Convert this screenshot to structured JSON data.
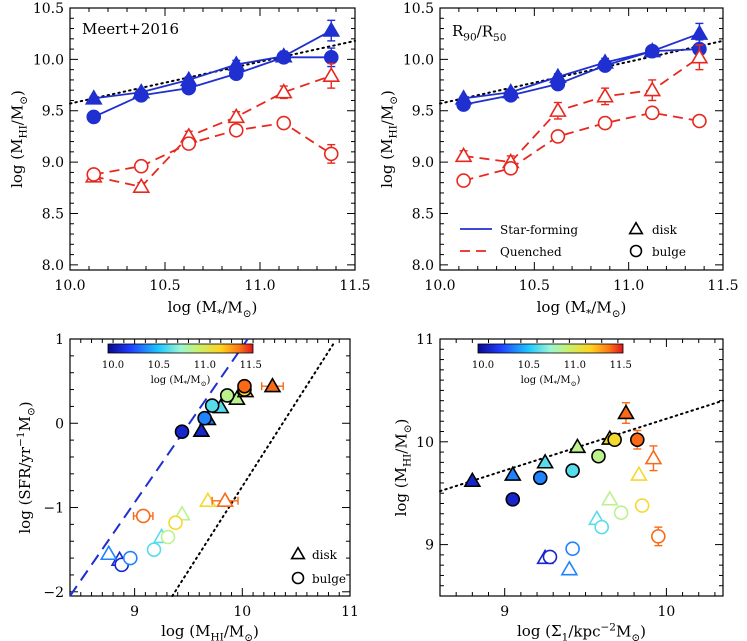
{
  "chart_data": [
    {
      "type": "line",
      "panel_label": "Meert+2016",
      "xlabel_main": "log (M",
      "xlabel_sub": "*",
      "xlabel_mid": "/M",
      "xlabel_sun": "⊙",
      "xlabel_end": ")",
      "ylabel_main": "log (M",
      "ylabel_sub": "HI",
      "ylabel_mid": "/M",
      "ylabel_sun": "⊙",
      "ylabel_end": ")",
      "xlim": [
        10.0,
        11.5
      ],
      "ylim": [
        7.95,
        10.5
      ],
      "xticks": [
        "10.0",
        "10.5",
        "11.0",
        "11.5"
      ],
      "yticks": [
        "8.0",
        "8.5",
        "9.0",
        "9.5",
        "10.0",
        "10.5"
      ],
      "x": [
        10.125,
        10.375,
        10.625,
        10.875,
        11.125,
        11.375
      ],
      "series": [
        {
          "group": "Star-forming",
          "shape": "disk",
          "color": "#1f2fd0",
          "dash": "solid",
          "filled": true,
          "values": [
            9.62,
            9.68,
            9.8,
            9.95,
            10.03,
            10.28
          ],
          "err": [
            0.02,
            0.03,
            0.03,
            0.04,
            0.05,
            0.1
          ]
        },
        {
          "group": "Star-forming",
          "shape": "bulge",
          "color": "#1f2fd0",
          "dash": "solid",
          "filled": true,
          "values": [
            9.44,
            9.65,
            9.72,
            9.86,
            10.02,
            10.02
          ],
          "err": [
            0.02,
            0.02,
            0.03,
            0.04,
            0.05,
            0.09
          ]
        },
        {
          "group": "Quenched",
          "shape": "disk",
          "color": "#e8281e",
          "dash": "dashed",
          "filled": false,
          "values": [
            8.86,
            8.76,
            9.25,
            9.44,
            9.68,
            9.84
          ],
          "err": [
            0.04,
            0.04,
            0.05,
            0.05,
            0.06,
            0.12
          ]
        },
        {
          "group": "Quenched",
          "shape": "bulge",
          "color": "#e8281e",
          "dash": "dashed",
          "filled": false,
          "values": [
            8.88,
            8.96,
            9.18,
            9.31,
            9.38,
            9.08
          ],
          "err": [
            0.03,
            0.03,
            0.04,
            0.04,
            0.04,
            0.09
          ]
        }
      ],
      "reference_line": {
        "style": "dotted",
        "x": [
          10.0,
          11.5
        ],
        "y": [
          9.57,
          10.18
        ]
      }
    },
    {
      "type": "line",
      "panel_label_main": "R",
      "panel_label_sub1": "90",
      "panel_label_mid": "/R",
      "panel_label_sub2": "50",
      "xlabel_main": "log (M",
      "xlabel_sub": "*",
      "xlabel_mid": "/M",
      "xlabel_sun": "⊙",
      "xlabel_end": ")",
      "ylabel_main": "log (M",
      "ylabel_sub": "HI",
      "ylabel_mid": "/M",
      "ylabel_sun": "⊙",
      "ylabel_end": ")",
      "xlim": [
        10.0,
        11.5
      ],
      "ylim": [
        7.95,
        10.5
      ],
      "xticks": [
        "10.0",
        "10.5",
        "11.0",
        "11.5"
      ],
      "yticks": [
        "8.0",
        "8.5",
        "9.0",
        "9.5",
        "10.0",
        "10.5"
      ],
      "x": [
        10.125,
        10.375,
        10.625,
        10.875,
        11.125,
        11.375
      ],
      "series": [
        {
          "group": "Star-forming",
          "shape": "disk",
          "color": "#1f2fd0",
          "dash": "solid",
          "filled": true,
          "values": [
            9.62,
            9.68,
            9.83,
            9.97,
            10.08,
            10.25
          ],
          "err": [
            0.02,
            0.03,
            0.03,
            0.04,
            0.05,
            0.1
          ]
        },
        {
          "group": "Star-forming",
          "shape": "bulge",
          "color": "#1f2fd0",
          "dash": "solid",
          "filled": true,
          "values": [
            9.56,
            9.65,
            9.76,
            9.94,
            10.08,
            10.1
          ],
          "err": [
            0.02,
            0.02,
            0.03,
            0.04,
            0.04,
            0.09
          ]
        },
        {
          "group": "Quenched",
          "shape": "disk",
          "color": "#e8281e",
          "dash": "dashed",
          "filled": false,
          "values": [
            9.06,
            9.0,
            9.5,
            9.64,
            9.7,
            10.02
          ],
          "err": [
            0.05,
            0.06,
            0.08,
            0.08,
            0.1,
            0.12
          ]
        },
        {
          "group": "Quenched",
          "shape": "bulge",
          "color": "#e8281e",
          "dash": "dashed",
          "filled": false,
          "values": [
            8.82,
            8.94,
            9.25,
            9.38,
            9.48,
            9.4
          ],
          "err": [
            0.03,
            0.03,
            0.04,
            0.04,
            0.04,
            0.05
          ]
        }
      ],
      "reference_line": {
        "style": "dotted",
        "x": [
          10.0,
          11.5
        ],
        "y": [
          9.57,
          10.18
        ]
      },
      "legend": {
        "star_forming_label": "Star-forming",
        "quenched_label": "Quenched",
        "disk_label": "disk",
        "bulge_label": "bulge"
      }
    },
    {
      "type": "scatter",
      "xlabel_main": "log (M",
      "xlabel_sub": "HI",
      "xlabel_mid": "/M",
      "xlabel_sun": "⊙",
      "xlabel_end": ")",
      "ylabel": "log (SFR/yr",
      "ylabel_sup": "−1",
      "ylabel_mid": "M",
      "ylabel_sun": "⊙",
      "ylabel_end": ")",
      "xlim": [
        8.4,
        11.0
      ],
      "ylim": [
        -2.05,
        1.0
      ],
      "xticks": [
        "9",
        "10",
        "11"
      ],
      "yticks": [
        "−2",
        "−1",
        "0",
        "1"
      ],
      "colorbar": {
        "label_main": "log (M",
        "label_sub": "*",
        "label_mid": "/M",
        "label_sun": "⊙",
        "label_end": ")",
        "ticks": [
          "10.0",
          "10.5",
          "11.0",
          "11.5"
        ],
        "range": [
          10.0,
          11.5
        ]
      },
      "legend": {
        "disk_label": "disk",
        "bulge_label": "bulge"
      },
      "points": [
        {
          "logMstar": 10.125,
          "shape": "disk",
          "filled": true,
          "x": 9.62,
          "y": -0.09
        },
        {
          "logMstar": 10.375,
          "shape": "disk",
          "filled": true,
          "x": 9.68,
          "y": 0.05
        },
        {
          "logMstar": 10.625,
          "shape": "disk",
          "filled": true,
          "x": 9.8,
          "y": 0.19
        },
        {
          "logMstar": 10.875,
          "shape": "disk",
          "filled": true,
          "x": 9.95,
          "y": 0.29
        },
        {
          "logMstar": 11.125,
          "shape": "disk",
          "filled": true,
          "x": 10.03,
          "y": 0.38
        },
        {
          "logMstar": 11.375,
          "shape": "disk",
          "filled": true,
          "x": 10.28,
          "y": 0.44,
          "xerr": 0.1
        },
        {
          "logMstar": 10.125,
          "shape": "bulge",
          "filled": true,
          "x": 9.44,
          "y": -0.1
        },
        {
          "logMstar": 10.375,
          "shape": "bulge",
          "filled": true,
          "x": 9.65,
          "y": 0.06
        },
        {
          "logMstar": 10.625,
          "shape": "bulge",
          "filled": true,
          "x": 9.72,
          "y": 0.21
        },
        {
          "logMstar": 10.875,
          "shape": "bulge",
          "filled": true,
          "x": 9.86,
          "y": 0.33
        },
        {
          "logMstar": 11.125,
          "shape": "bulge",
          "filled": true,
          "x": 10.02,
          "y": 0.4
        },
        {
          "logMstar": 11.375,
          "shape": "bulge",
          "filled": true,
          "x": 10.02,
          "y": 0.44
        },
        {
          "logMstar": 10.125,
          "shape": "disk",
          "filled": false,
          "x": 8.86,
          "y": -1.62
        },
        {
          "logMstar": 10.375,
          "shape": "disk",
          "filled": false,
          "x": 8.76,
          "y": -1.55
        },
        {
          "logMstar": 10.625,
          "shape": "disk",
          "filled": false,
          "x": 9.25,
          "y": -1.35
        },
        {
          "logMstar": 10.875,
          "shape": "disk",
          "filled": false,
          "x": 9.44,
          "y": -1.08
        },
        {
          "logMstar": 11.125,
          "shape": "disk",
          "filled": false,
          "x": 9.68,
          "y": -0.92
        },
        {
          "logMstar": 11.375,
          "shape": "disk",
          "filled": false,
          "x": 9.84,
          "y": -0.92,
          "xerr": 0.12
        },
        {
          "logMstar": 10.125,
          "shape": "bulge",
          "filled": false,
          "x": 8.88,
          "y": -1.68
        },
        {
          "logMstar": 10.375,
          "shape": "bulge",
          "filled": false,
          "x": 8.96,
          "y": -1.6
        },
        {
          "logMstar": 10.625,
          "shape": "bulge",
          "filled": false,
          "x": 9.18,
          "y": -1.5
        },
        {
          "logMstar": 10.875,
          "shape": "bulge",
          "filled": false,
          "x": 9.31,
          "y": -1.35
        },
        {
          "logMstar": 11.125,
          "shape": "bulge",
          "filled": false,
          "x": 9.38,
          "y": -1.18
        },
        {
          "logMstar": 11.375,
          "shape": "bulge",
          "filled": false,
          "x": 9.08,
          "y": -1.1,
          "xerr": 0.09
        }
      ],
      "reference_lines": [
        {
          "style": "dashed",
          "color": "#1f2fd0",
          "x": [
            8.4,
            10.05
          ],
          "y": [
            -2.05,
            1.0
          ]
        },
        {
          "style": "dotted",
          "color": "#000000",
          "x": [
            9.35,
            10.85
          ],
          "y": [
            -2.05,
            0.95
          ]
        }
      ]
    },
    {
      "type": "scatter",
      "xlabel": "log (Σ",
      "xlabel_sub": "1",
      "xlabel_mid": "/kpc",
      "xlabel_sup": "−2",
      "xlabel_mid2": "M",
      "xlabel_sun": "⊙",
      "xlabel_end": ")",
      "ylabel_main": "log (M",
      "ylabel_sub": "HI",
      "ylabel_mid": "/M",
      "ylabel_sun": "⊙",
      "ylabel_end": ")",
      "xlim": [
        8.6,
        10.35
      ],
      "ylim": [
        8.5,
        11.0
      ],
      "xticks": [
        "9",
        "10"
      ],
      "yticks": [
        "9",
        "10",
        "11"
      ],
      "colorbar": {
        "label_main": "log (M",
        "label_sub": "*",
        "label_mid": "/M",
        "label_sun": "⊙",
        "label_end": ")",
        "ticks": [
          "10.0",
          "10.5",
          "11.0",
          "11.5"
        ],
        "range": [
          10.0,
          11.5
        ]
      },
      "points": [
        {
          "logMstar": 10.125,
          "shape": "disk",
          "filled": true,
          "x": 8.8,
          "y": 9.62
        },
        {
          "logMstar": 10.375,
          "shape": "disk",
          "filled": true,
          "x": 9.05,
          "y": 9.68
        },
        {
          "logMstar": 10.625,
          "shape": "disk",
          "filled": true,
          "x": 9.25,
          "y": 9.8
        },
        {
          "logMstar": 10.875,
          "shape": "disk",
          "filled": true,
          "x": 9.45,
          "y": 9.95
        },
        {
          "logMstar": 11.125,
          "shape": "disk",
          "filled": true,
          "x": 9.65,
          "y": 10.03
        },
        {
          "logMstar": 11.375,
          "shape": "disk",
          "filled": true,
          "x": 9.75,
          "y": 10.28,
          "yerr": 0.1
        },
        {
          "logMstar": 10.125,
          "shape": "bulge",
          "filled": true,
          "x": 9.05,
          "y": 9.44
        },
        {
          "logMstar": 10.375,
          "shape": "bulge",
          "filled": true,
          "x": 9.22,
          "y": 9.65
        },
        {
          "logMstar": 10.625,
          "shape": "bulge",
          "filled": true,
          "x": 9.42,
          "y": 9.72
        },
        {
          "logMstar": 10.875,
          "shape": "bulge",
          "filled": true,
          "x": 9.58,
          "y": 9.86
        },
        {
          "logMstar": 11.125,
          "shape": "bulge",
          "filled": true,
          "x": 9.68,
          "y": 10.02
        },
        {
          "logMstar": 11.375,
          "shape": "bulge",
          "filled": true,
          "x": 9.82,
          "y": 10.02,
          "yerr": 0.09
        },
        {
          "logMstar": 10.125,
          "shape": "disk",
          "filled": false,
          "x": 9.25,
          "y": 8.87
        },
        {
          "logMstar": 10.375,
          "shape": "disk",
          "filled": false,
          "x": 9.4,
          "y": 8.76
        },
        {
          "logMstar": 10.625,
          "shape": "disk",
          "filled": false,
          "x": 9.57,
          "y": 9.25
        },
        {
          "logMstar": 10.875,
          "shape": "disk",
          "filled": false,
          "x": 9.65,
          "y": 9.44
        },
        {
          "logMstar": 11.125,
          "shape": "disk",
          "filled": false,
          "x": 9.83,
          "y": 9.68
        },
        {
          "logMstar": 11.375,
          "shape": "disk",
          "filled": false,
          "x": 9.92,
          "y": 9.84,
          "yerr": 0.12
        },
        {
          "logMstar": 10.125,
          "shape": "bulge",
          "filled": false,
          "x": 9.28,
          "y": 8.88
        },
        {
          "logMstar": 10.375,
          "shape": "bulge",
          "filled": false,
          "x": 9.42,
          "y": 8.96
        },
        {
          "logMstar": 10.625,
          "shape": "bulge",
          "filled": false,
          "x": 9.6,
          "y": 9.17
        },
        {
          "logMstar": 10.875,
          "shape": "bulge",
          "filled": false,
          "x": 9.72,
          "y": 9.31
        },
        {
          "logMstar": 11.125,
          "shape": "bulge",
          "filled": false,
          "x": 9.85,
          "y": 9.38
        },
        {
          "logMstar": 11.375,
          "shape": "bulge",
          "filled": false,
          "x": 9.95,
          "y": 9.08,
          "yerr": 0.09
        }
      ],
      "reference_lines": [
        {
          "style": "dotted",
          "color": "#000000",
          "x": [
            8.6,
            10.35
          ],
          "y": [
            9.52,
            10.4
          ]
        }
      ]
    }
  ]
}
